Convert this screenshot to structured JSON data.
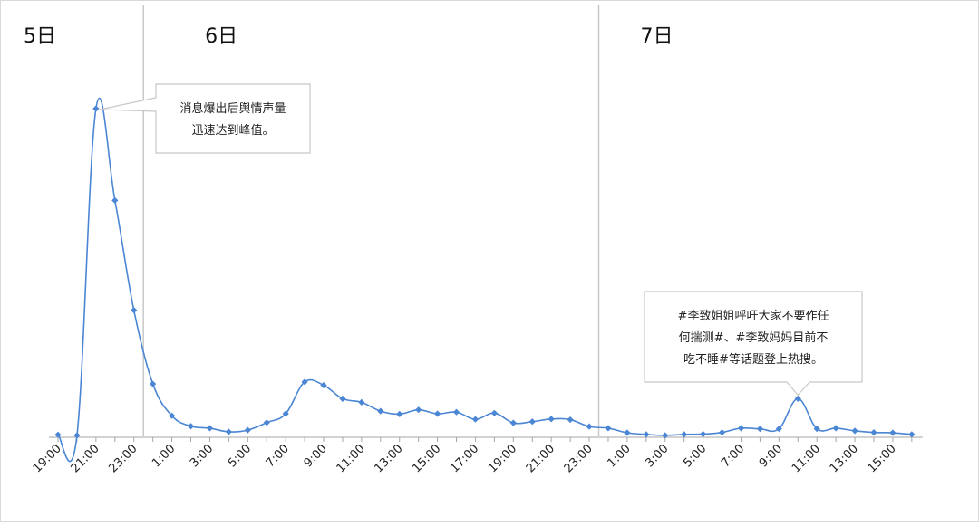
{
  "chart_data": {
    "type": "line",
    "title": "",
    "xlabel": "",
    "ylabel": "",
    "grid": false,
    "legend": "none",
    "x_tick_labels": [
      "19:00",
      "21:00",
      "23:00",
      "1:00",
      "3:00",
      "5:00",
      "7:00",
      "9:00",
      "11:00",
      "13:00",
      "15:00",
      "17:00",
      "19:00",
      "21:00",
      "23:00",
      "1:00",
      "3:00",
      "5:00",
      "7:00",
      "9:00",
      "11:00",
      "13:00",
      "15:00"
    ],
    "tick_every_points": 2,
    "day_labels": [
      {
        "label": "5日",
        "at_point": 0
      },
      {
        "label": "6日",
        "at_point": 4.5
      },
      {
        "label": "7日",
        "at_point": 28.5
      }
    ],
    "day_dividers_at_point": [
      4.5,
      28.5
    ],
    "ylim": [
      0,
      100
    ],
    "series": [
      {
        "color": "#4a86d4",
        "values": [
          0.5,
          0.3,
          100,
          72,
          38.5,
          16,
          6.3,
          3.1,
          2.5,
          1.4,
          1.9,
          4.2,
          6.9,
          16.6,
          15.6,
          11.5,
          10.4,
          7.7,
          6.8,
          8.1,
          6.9,
          7.4,
          5.2,
          7.1,
          4.1,
          4.5,
          5.3,
          5.1,
          3.0,
          2.5,
          1.1,
          0.6,
          0.3,
          0.6,
          0.7,
          1.2,
          2.5,
          2.3,
          2.3,
          11.5,
          2.3,
          2.5,
          1.7,
          1.2,
          1.1,
          0.6
        ]
      }
    ],
    "annotations": [
      {
        "lines": [
          "消息爆出后舆情声量",
          "迅速达到峰值。"
        ],
        "points_to": 2
      },
      {
        "lines": [
          "#李致姐姐呼吁大家不要作任",
          "何揣测#、#李致妈妈目前不",
          "吃不睡#等话题登上热搜。"
        ],
        "points_to": 39
      }
    ]
  }
}
